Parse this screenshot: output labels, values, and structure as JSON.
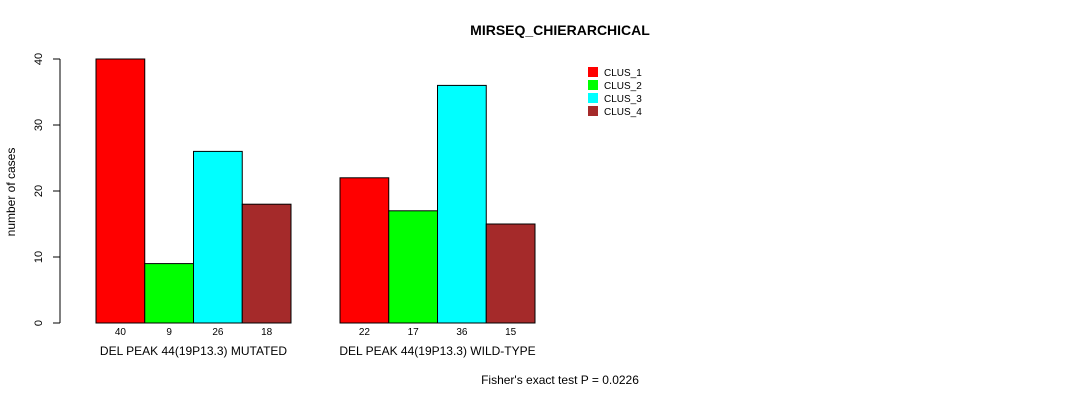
{
  "chart_data": {
    "type": "bar",
    "title": "MIRSEQ_CHIERARCHICAL",
    "ylabel": "number of cases",
    "xlabel": "",
    "ylim": [
      0,
      40
    ],
    "yticks": [
      "0",
      "10",
      "20",
      "30",
      "40"
    ],
    "legend_position": "top-right",
    "grid": false,
    "groups": [
      {
        "label": "DEL PEAK 44(19P13.3) MUTATED",
        "values": [
          40,
          9,
          26,
          18
        ]
      },
      {
        "label": "DEL PEAK 44(19P13.3) WILD-TYPE",
        "values": [
          22,
          17,
          36,
          15
        ]
      }
    ],
    "series": [
      {
        "name": "CLUS_1",
        "color": "#ff0000"
      },
      {
        "name": "CLUS_2",
        "color": "#00ff00"
      },
      {
        "name": "CLUS_3",
        "color": "#00ffff"
      },
      {
        "name": "CLUS_4",
        "color": "#a52a2a"
      }
    ],
    "annotation": "Fisher's exact test P = 0.0226"
  }
}
